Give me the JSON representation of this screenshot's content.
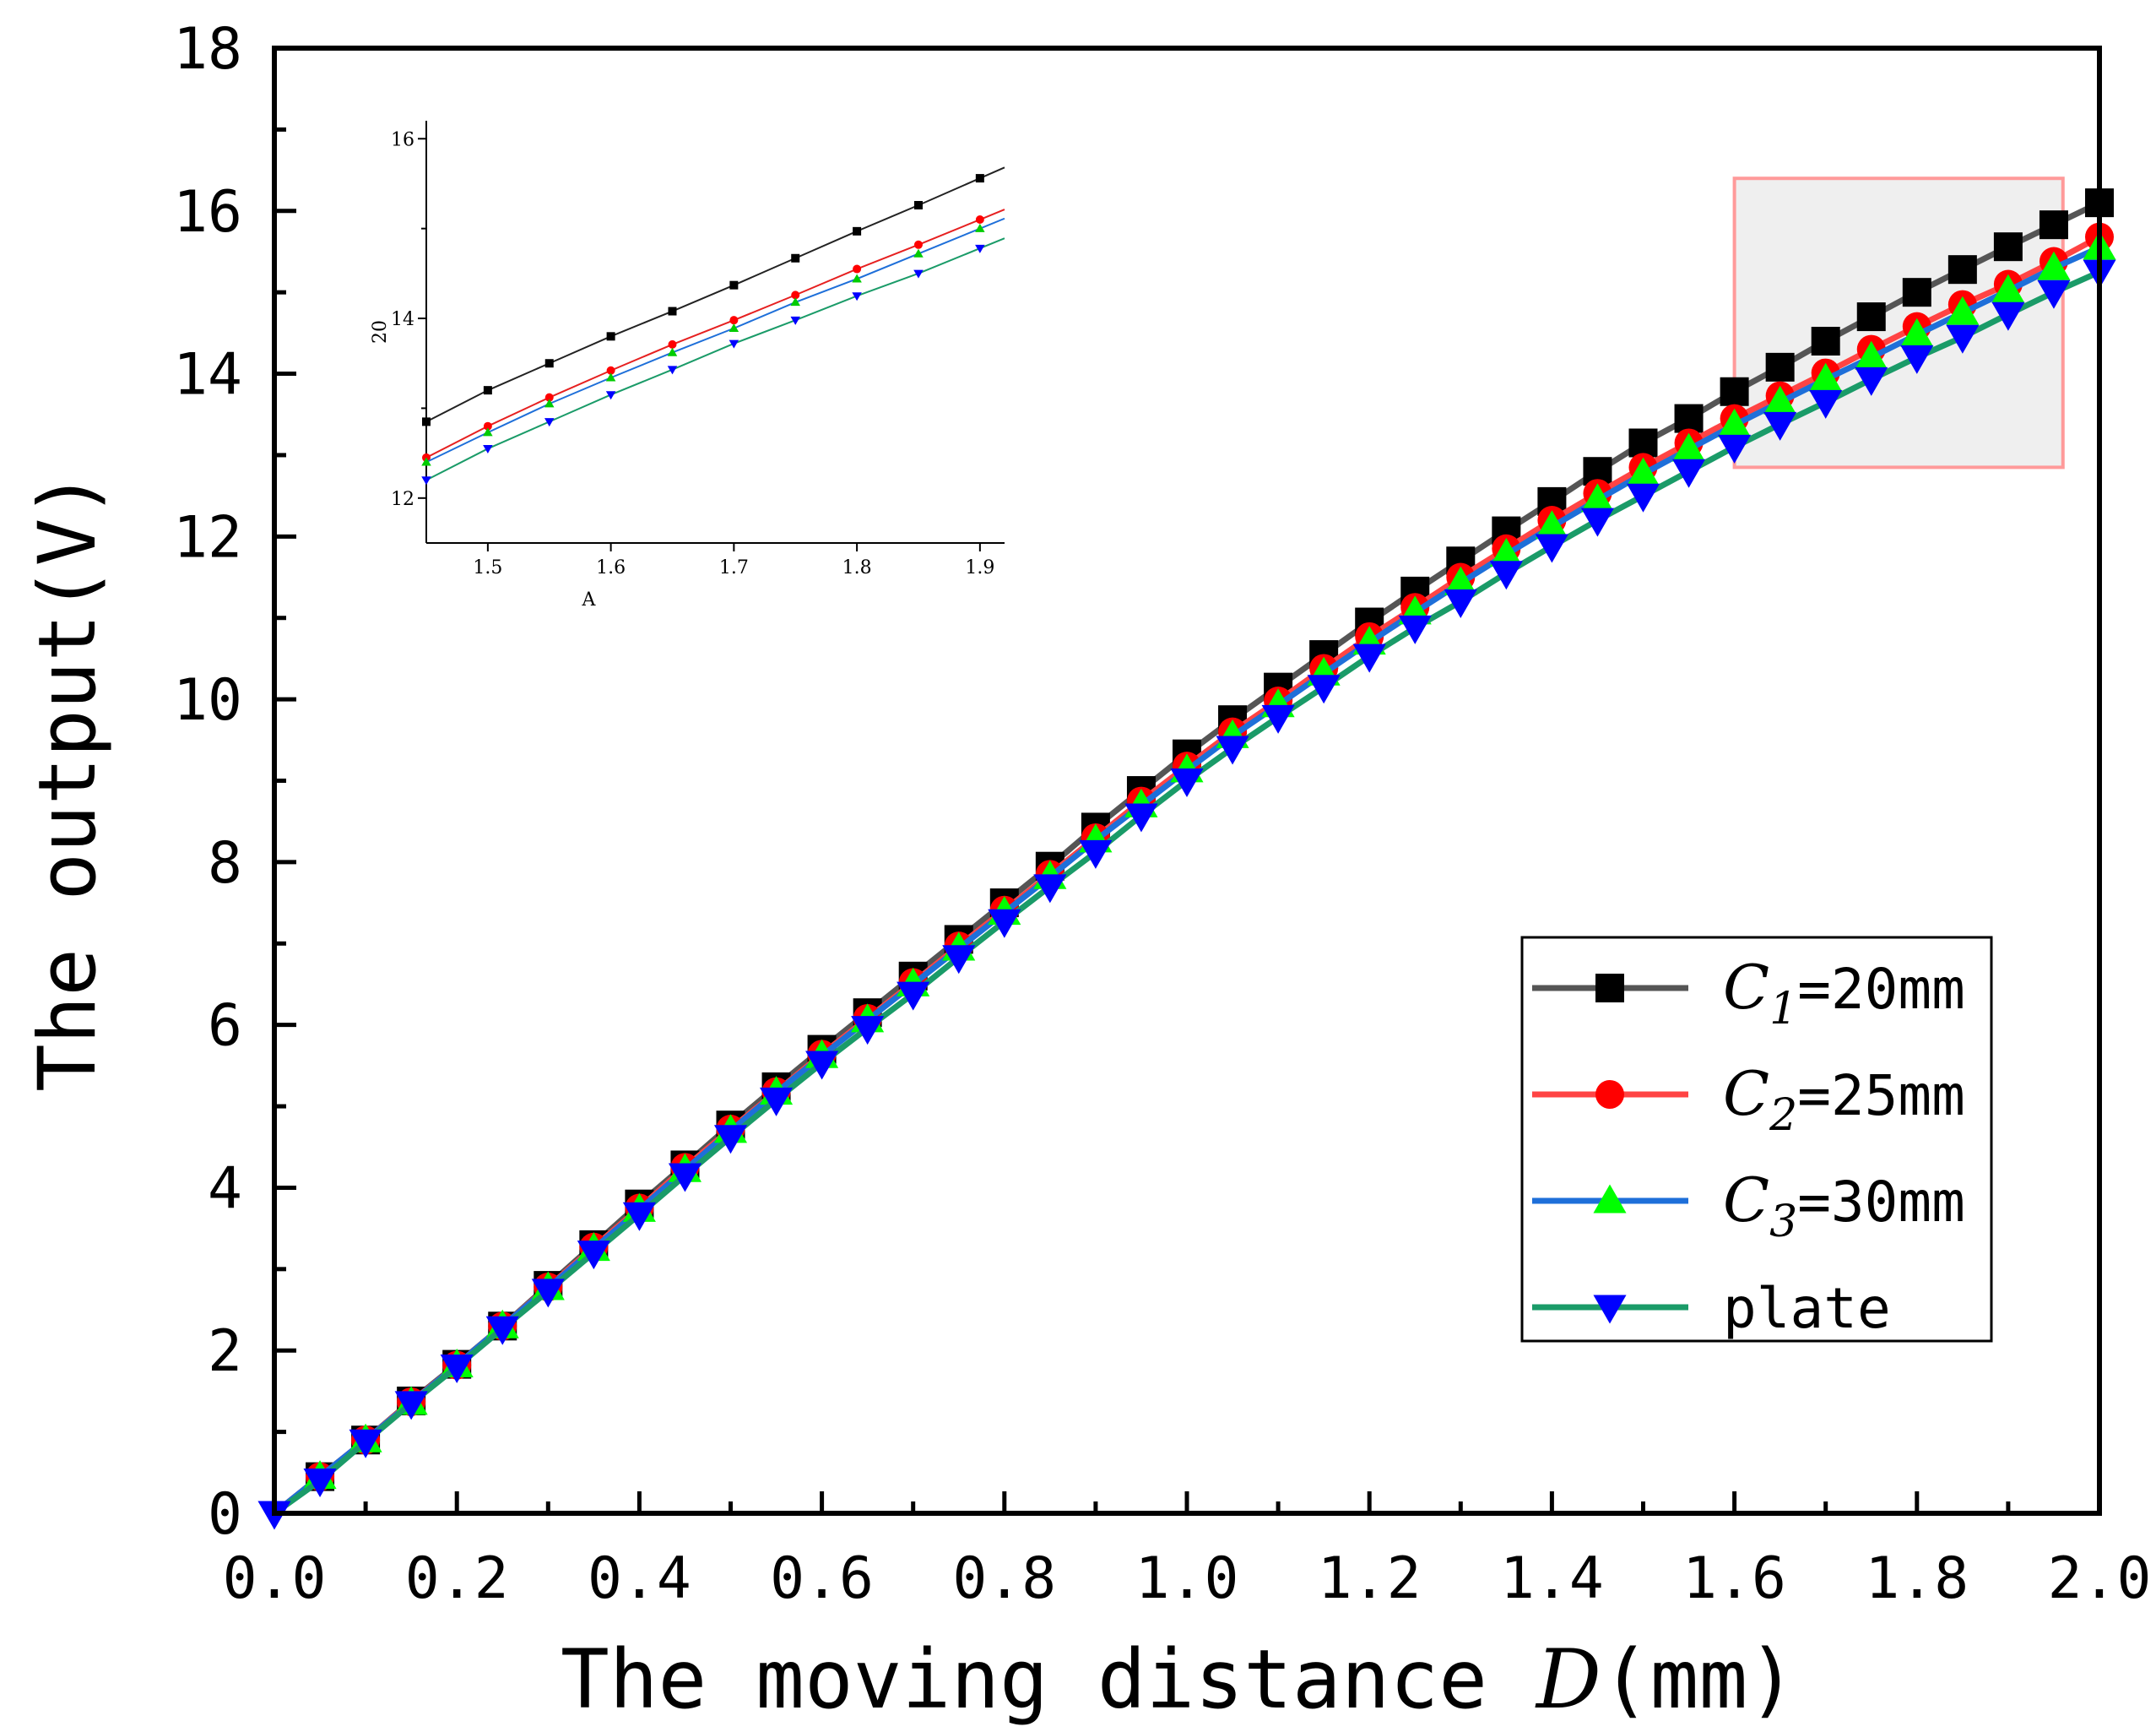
{
  "chart_data": {
    "type": "line",
    "title": "",
    "xlabel": "The moving distance D(mm)",
    "xlabel_prefix": "The moving distance ",
    "xlabel_var": "D",
    "xlabel_unit": "(mm)",
    "ylabel": "The output(V)",
    "xlim": [
      0,
      2.0
    ],
    "ylim": [
      0,
      18
    ],
    "x_ticks": [
      "0.0",
      "0.2",
      "0.4",
      "0.6",
      "0.8",
      "1.0",
      "1.2",
      "1.4",
      "1.6",
      "1.8",
      "2.0"
    ],
    "y_ticks": [
      "0",
      "2",
      "4",
      "6",
      "8",
      "10",
      "12",
      "14",
      "16",
      "18"
    ],
    "x": [
      0.0,
      0.05,
      0.1,
      0.15,
      0.2,
      0.25,
      0.3,
      0.35,
      0.4,
      0.45,
      0.5,
      0.55,
      0.6,
      0.65,
      0.7,
      0.75,
      0.8,
      0.85,
      0.9,
      0.95,
      1.0,
      1.05,
      1.1,
      1.15,
      1.2,
      1.25,
      1.3,
      1.35,
      1.4,
      1.45,
      1.5,
      1.55,
      1.6,
      1.65,
      1.7,
      1.75,
      1.8,
      1.85,
      1.9,
      1.95,
      2.0
    ],
    "series": [
      {
        "name": "C1=20mm",
        "letter": "C",
        "sub": "1",
        "rest": "=20mm",
        "line_color": "#555555",
        "marker_color": "#000000",
        "marker": "square",
        "values": [
          0,
          0.45,
          0.9,
          1.38,
          1.83,
          2.3,
          2.8,
          3.3,
          3.8,
          4.28,
          4.77,
          5.24,
          5.7,
          6.15,
          6.6,
          7.05,
          7.5,
          7.95,
          8.43,
          8.88,
          9.33,
          9.75,
          10.15,
          10.55,
          10.95,
          11.33,
          11.7,
          12.07,
          12.43,
          12.8,
          13.15,
          13.45,
          13.78,
          14.08,
          14.4,
          14.7,
          15.0,
          15.28,
          15.56,
          15.83,
          16.1
        ]
      },
      {
        "name": "C2=25mm",
        "letter": "C",
        "sub": "2",
        "rest": "=25mm",
        "line_color": "#ff4444",
        "marker_color": "#ff0000",
        "marker": "circle",
        "values": [
          0,
          0.45,
          0.9,
          1.37,
          1.82,
          2.3,
          2.78,
          3.27,
          3.75,
          4.25,
          4.72,
          5.18,
          5.64,
          6.08,
          6.52,
          6.97,
          7.41,
          7.85,
          8.3,
          8.75,
          9.18,
          9.6,
          9.98,
          10.38,
          10.77,
          11.13,
          11.5,
          11.85,
          12.2,
          12.53,
          12.85,
          13.15,
          13.45,
          13.73,
          14.01,
          14.3,
          14.58,
          14.85,
          15.1,
          15.38,
          15.68
        ]
      },
      {
        "name": "C3=30mm",
        "letter": "C",
        "sub": "3",
        "rest": "=30mm",
        "line_color": "#1e6fd9",
        "marker_color": "#00ff00",
        "marker": "triangle",
        "values": [
          0,
          0.45,
          0.9,
          1.36,
          1.82,
          2.3,
          2.77,
          3.25,
          3.73,
          4.22,
          4.7,
          5.17,
          5.62,
          6.06,
          6.5,
          6.94,
          7.38,
          7.82,
          8.27,
          8.7,
          9.13,
          9.55,
          9.93,
          10.32,
          10.7,
          11.07,
          11.43,
          11.78,
          12.12,
          12.45,
          12.77,
          13.07,
          13.37,
          13.65,
          13.93,
          14.2,
          14.48,
          14.75,
          15.02,
          15.3,
          15.55
        ]
      },
      {
        "name": "plate",
        "letter": "",
        "sub": "",
        "rest": "plate",
        "line_color": "#1a9b68",
        "marker_color": "#0000ff",
        "marker": "triangle-down",
        "values": [
          0,
          0.4,
          0.88,
          1.35,
          1.8,
          2.27,
          2.73,
          3.2,
          3.67,
          4.15,
          4.62,
          5.08,
          5.53,
          5.96,
          6.38,
          6.83,
          7.27,
          7.7,
          8.12,
          8.57,
          9.0,
          9.4,
          9.78,
          10.15,
          10.53,
          10.88,
          11.2,
          11.55,
          11.88,
          12.2,
          12.5,
          12.8,
          13.1,
          13.38,
          13.65,
          13.93,
          14.2,
          14.45,
          14.73,
          15.0,
          15.25
        ]
      }
    ],
    "legend": {
      "position": "lower-right"
    },
    "highlight": {
      "x_range": [
        1.6,
        1.96
      ],
      "y_range": [
        12.85,
        16.4
      ]
    },
    "inset": {
      "xlabel": "A",
      "ylabel": "20",
      "xlim": [
        1.45,
        1.92
      ],
      "ylim": [
        11.5,
        16.2
      ],
      "x_ticks": [
        "1.5",
        "1.6",
        "1.7",
        "1.8",
        "1.9"
      ],
      "y_ticks": [
        "12",
        "14",
        "16"
      ],
      "x": [
        1.45,
        1.5,
        1.55,
        1.6,
        1.65,
        1.7,
        1.75,
        1.8,
        1.85,
        1.9
      ],
      "values": [
        [
          12.85,
          13.2,
          13.5,
          13.8,
          14.08,
          14.37,
          14.67,
          14.97,
          15.26,
          15.56
        ],
        [
          12.45,
          12.8,
          13.12,
          13.42,
          13.71,
          13.98,
          14.26,
          14.55,
          14.82,
          15.1
        ],
        [
          12.4,
          12.73,
          13.05,
          13.34,
          13.62,
          13.89,
          14.18,
          14.44,
          14.72,
          15.0
        ],
        [
          12.2,
          12.55,
          12.85,
          13.15,
          13.43,
          13.72,
          13.98,
          14.25,
          14.5,
          14.78
        ]
      ]
    }
  }
}
